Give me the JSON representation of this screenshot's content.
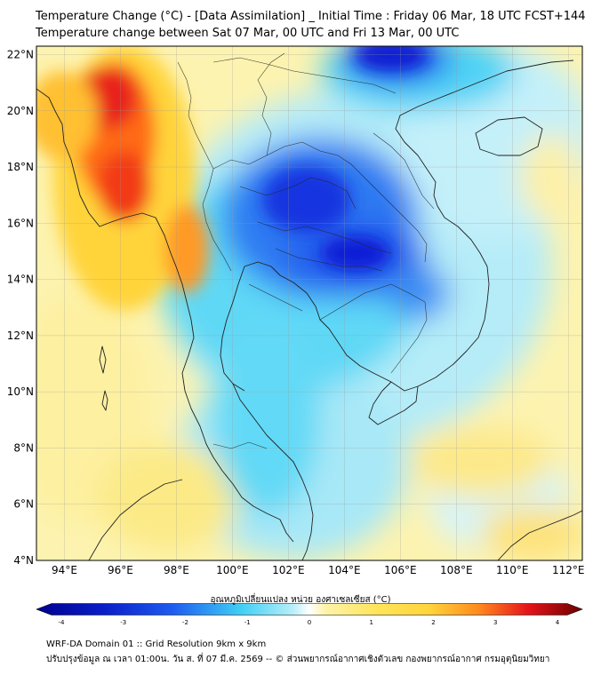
{
  "header": {
    "title_line1": "Temperature Change (°C) - [Data Assimilation] _ Initial Time : Friday 06 Mar, 18 UTC FCST+144",
    "title_line2": "Temperature change between Sat 07 Mar, 00 UTC and Fri 13 Mar, 00 UTC"
  },
  "map": {
    "lat_labels": [
      "22°N",
      "20°N",
      "18°N",
      "16°N",
      "14°N",
      "12°N",
      "10°N",
      "8°N",
      "6°N",
      "4°N"
    ],
    "lon_labels": [
      "94°E",
      "96°E",
      "98°E",
      "100°E",
      "102°E",
      "104°E",
      "106°E",
      "108°E",
      "110°E",
      "112°E"
    ],
    "lat_range": [
      4,
      22.3
    ],
    "lon_range": [
      93,
      112.5
    ]
  },
  "colorbar": {
    "title": "อุณหภูมิเปลี่ยนแปลง หน่วย องศาเซลเซียส (°C)",
    "ticks": [
      "-4",
      "-3",
      "-2",
      "-1",
      "0",
      "1",
      "2",
      "3",
      "4"
    ],
    "colors": {
      "deep_blue": "#00008f",
      "blue": "#1e5cf0",
      "cyan": "#3fd0f5",
      "light_cyan": "#b8eef8",
      "white": "#ffffff",
      "light_yellow": "#fdf3a8",
      "yellow": "#ffd43b",
      "orange": "#ff8a1e",
      "red": "#e5141a",
      "dark_red": "#6a0000"
    }
  },
  "footer": {
    "line1": "WRF-DA Domain 01 :: Grid Resolution 9km x 9km",
    "line2": "ปรับปรุงข้อมูล ณ เวลา 01:00น. วัน ส. ที่ 07 มี.ค. 2569 -- © ส่วนพยากรณ์อากาศเชิงตัวเลข กองพยากรณ์อากาศ กรมอุตุนิยมวิทยา"
  }
}
